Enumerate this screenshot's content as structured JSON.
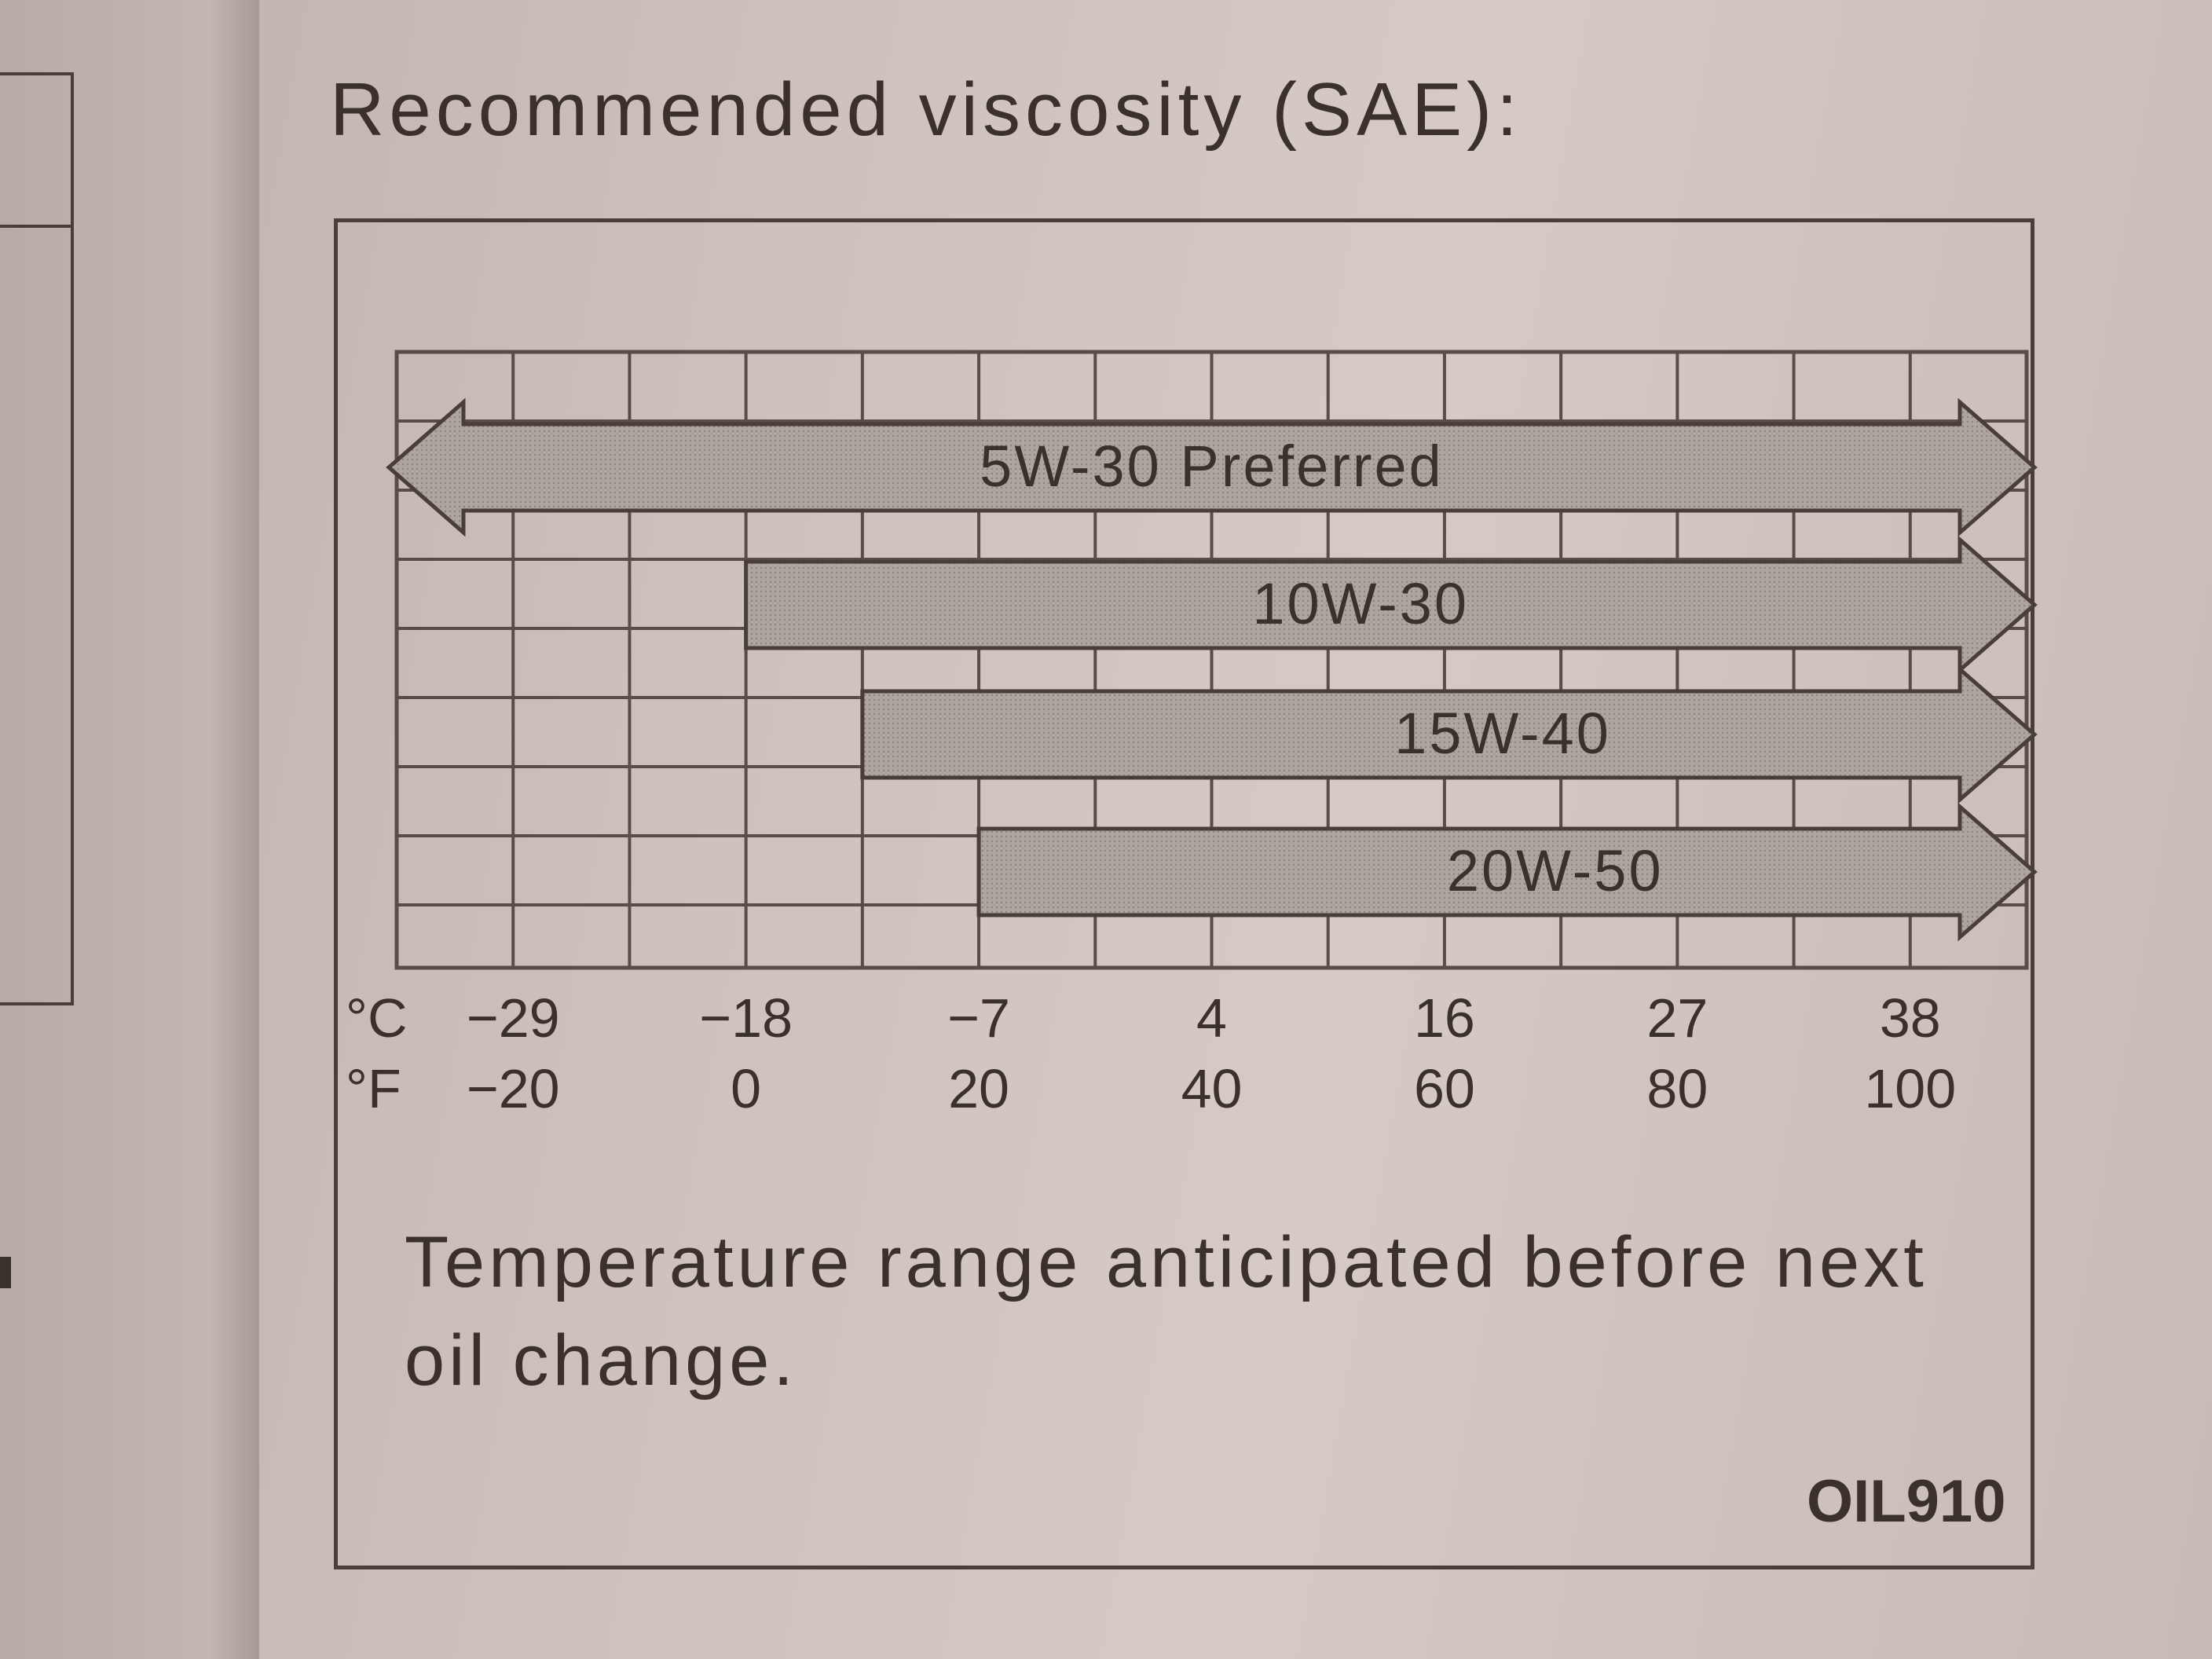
{
  "heading": "Recommended viscosity (SAE):",
  "caption": "Temperature range anticipated before next oil change.",
  "code": "OIL910",
  "colors": {
    "grid": "#5a4d48",
    "bar_fill": "#a8a09b",
    "bar_stroke": "#4a3e3a",
    "text": "#3a302c"
  },
  "chart_data": {
    "type": "bar",
    "orientation": "horizontal",
    "x_axes": [
      {
        "unit_label": "°C",
        "ticks": [
          "−29",
          "−18",
          "−7",
          "4",
          "16",
          "27",
          "38"
        ]
      },
      {
        "unit_label": "°F",
        "ticks": [
          "−20",
          "0",
          "20",
          "40",
          "60",
          "80",
          "100"
        ]
      }
    ],
    "x_unit": "°F",
    "xlim": [
      -30,
      110
    ],
    "tick_values_f": [
      -20,
      0,
      20,
      40,
      60,
      80,
      100
    ],
    "grid": true,
    "series": [
      {
        "name": "5W-30  Preferred",
        "start": -30,
        "end": 110,
        "arrow_left": true,
        "arrow_right": true
      },
      {
        "name": "10W-30",
        "start": 0,
        "end": 110,
        "arrow_left": false,
        "arrow_right": true
      },
      {
        "name": "15W-40",
        "start": 10,
        "end": 110,
        "arrow_left": false,
        "arrow_right": true
      },
      {
        "name": "20W-50",
        "start": 20,
        "end": 110,
        "arrow_left": false,
        "arrow_right": true
      }
    ]
  }
}
